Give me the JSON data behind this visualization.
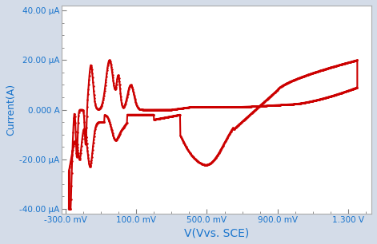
{
  "background_color": "#d4dce8",
  "plot_bg_color": "#ffffff",
  "line_color": "#cc0000",
  "line_width": 1.5,
  "marker_size": 1.8,
  "xlabel": "V(Vvs. SCE)",
  "ylabel": "Current(A)",
  "xlabel_fontsize": 10,
  "ylabel_fontsize": 9,
  "tick_label_color": "#1874cd",
  "tick_label_fontsize": 7.5,
  "xlim": [
    -0.32,
    1.43
  ],
  "ylim": [
    -4.2e-05,
    4.2e-05
  ],
  "xticks": [
    -0.3,
    0.1,
    0.5,
    0.9,
    1.3
  ],
  "xtick_labels": [
    "-300.0 mV",
    "100.0 mV",
    "500.0 mV",
    "900.0 mV",
    "1.300 V"
  ],
  "yticks": [
    -4e-05,
    -2e-05,
    0.0,
    2e-05,
    4e-05
  ],
  "ytick_labels": [
    "-40.00 μA",
    "-20.00 μA",
    "0.000 A",
    "20.00 μA",
    "40.00 μA"
  ]
}
